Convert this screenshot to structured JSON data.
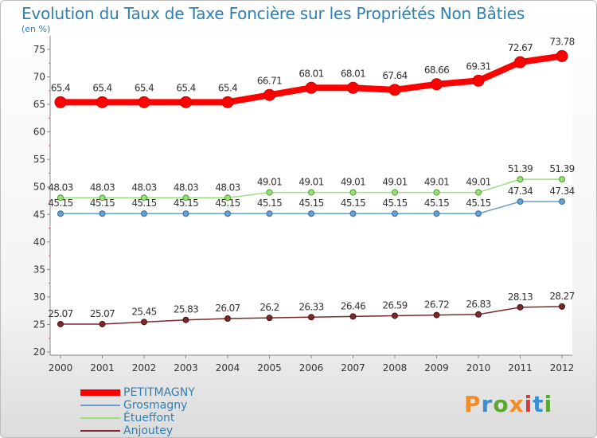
{
  "title": "Evolution du Taux de Taxe Foncière sur les Propriétés Non Bâties",
  "unit_label": "(en %)",
  "logo": {
    "text": "Proxiti",
    "colors": [
      "#f28c28",
      "#3a8fd1",
      "#5aa832",
      "#f28c28",
      "#d23c3c",
      "#3a8fd1",
      "#5aa832"
    ]
  },
  "chart_data": {
    "type": "line",
    "x": [
      "2000",
      "2001",
      "2002",
      "2003",
      "2004",
      "2005",
      "2006",
      "2007",
      "2008",
      "2009",
      "2010",
      "2011",
      "2012"
    ],
    "y_ticks": [
      20,
      25,
      30,
      35,
      40,
      45,
      50,
      55,
      60,
      65,
      70,
      75
    ],
    "ylim": [
      20,
      75
    ],
    "grid": false,
    "legend_position": "bottom-left",
    "series": [
      {
        "name": "PETITMAGNY",
        "color": "#ff0000",
        "values": [
          65.4,
          65.4,
          65.4,
          65.4,
          65.4,
          66.71,
          68.01,
          68.01,
          67.64,
          68.66,
          69.31,
          72.67,
          73.78
        ],
        "labels": [
          "65.4",
          "65.4",
          "65.4",
          "65.4",
          "65.4",
          "66.71",
          "68.01",
          "68.01",
          "67.64",
          "68.66",
          "69.31",
          "72.67",
          "73.78"
        ]
      },
      {
        "name": "Grosmagny",
        "color": "#6b9ec9",
        "values": [
          45.15,
          45.15,
          45.15,
          45.15,
          45.15,
          45.15,
          45.15,
          45.15,
          45.15,
          45.15,
          45.15,
          47.34,
          47.34
        ],
        "labels": [
          "45.15",
          "45.15",
          "45.15",
          "45.15",
          "45.15",
          "45.15",
          "45.15",
          "45.15",
          "45.15",
          "45.15",
          "45.15",
          "47.34",
          "47.34"
        ]
      },
      {
        "name": "Étueffont",
        "color": "#99e07a",
        "values": [
          48.03,
          48.03,
          48.03,
          48.03,
          48.03,
          49.01,
          49.01,
          49.01,
          49.01,
          49.01,
          49.01,
          51.39,
          51.39
        ],
        "labels": [
          "48.03",
          "48.03",
          "48.03",
          "48.03",
          "48.03",
          "49.01",
          "49.01",
          "49.01",
          "49.01",
          "49.01",
          "49.01",
          "51.39",
          "51.39"
        ]
      },
      {
        "name": "Anjoutey",
        "color": "#7a2a2a",
        "values": [
          25.07,
          25.07,
          25.45,
          25.83,
          26.07,
          26.2,
          26.33,
          26.46,
          26.59,
          26.72,
          26.83,
          28.13,
          28.27
        ],
        "labels": [
          "25.07",
          "25.07",
          "25.45",
          "25.83",
          "26.07",
          "26.2",
          "26.33",
          "26.46",
          "26.59",
          "26.72",
          "26.83",
          "28.13",
          "28.27"
        ]
      }
    ]
  }
}
